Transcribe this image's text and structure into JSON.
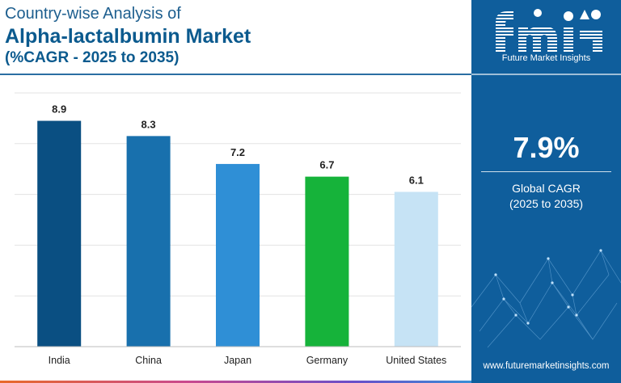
{
  "title": {
    "line1": "Country-wise Analysis of",
    "line2": "Alpha-lactalbumin Market",
    "line3": "(%CAGR - 2025 to 2035)"
  },
  "brand": {
    "logo_text": "fmi",
    "subtitle": "Future Market Insights",
    "website": "www.futuremarketinsights.com"
  },
  "summary": {
    "cagr_value": "7.9%",
    "cagr_label": "Global CAGR",
    "cagr_period": "(2025 to 2035)"
  },
  "colors": {
    "panel": "#0f5e9c",
    "title": "#0b5a8e"
  },
  "chart_data": {
    "type": "bar",
    "categories": [
      "India",
      "China",
      "Japan",
      "Germany",
      "United States"
    ],
    "values": [
      8.9,
      8.3,
      7.2,
      6.7,
      6.1
    ],
    "value_labels": [
      "8.9",
      "8.3",
      "7.2",
      "6.7",
      "6.1"
    ],
    "colors": [
      "#0a4f82",
      "#1870ad",
      "#2f8fd6",
      "#16b33a",
      "#c6e3f5"
    ],
    "ylim": [
      0,
      10
    ],
    "grid": true,
    "xlabel": "",
    "ylabel": ""
  }
}
